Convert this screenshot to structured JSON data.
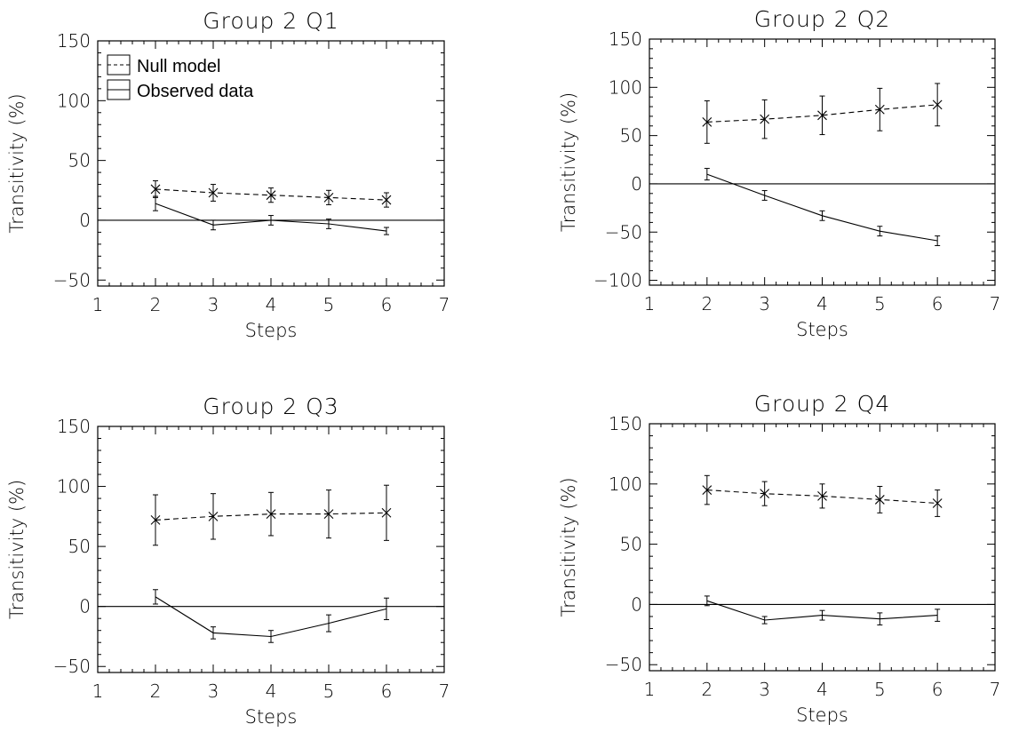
{
  "legend": {
    "entries": [
      {
        "label": "Null model",
        "style": "dashed"
      },
      {
        "label": "Observed data",
        "style": "solid"
      }
    ]
  },
  "chart_data": [
    {
      "type": "line",
      "title": "Group 2 Q1",
      "xlabel": "Steps",
      "ylabel": "Transitivity (%)",
      "xlim": [
        1,
        7
      ],
      "ylim": [
        -55,
        150
      ],
      "xticks": [
        1,
        2,
        3,
        4,
        5,
        6,
        7
      ],
      "yticks": [
        -50,
        0,
        50,
        100,
        150
      ],
      "reference_line_y": 0,
      "legend": true,
      "series": [
        {
          "name": "Null model",
          "style": "dashed",
          "marker": "x",
          "x": [
            2,
            3,
            4,
            5,
            6
          ],
          "y": [
            26,
            23,
            21,
            19,
            17
          ],
          "err": [
            7,
            7,
            6,
            6,
            6
          ]
        },
        {
          "name": "Observed data",
          "style": "solid",
          "marker": "none",
          "x": [
            2,
            3,
            4,
            5,
            6
          ],
          "y": [
            14,
            -4,
            0,
            -3,
            -9
          ],
          "err": [
            6,
            4,
            4,
            4,
            3
          ]
        }
      ]
    },
    {
      "type": "line",
      "title": "Group 2 Q2",
      "xlabel": "Steps",
      "ylabel": "Transitivity (%)",
      "xlim": [
        1,
        7
      ],
      "ylim": [
        -105,
        150
      ],
      "xticks": [
        1,
        2,
        3,
        4,
        5,
        6,
        7
      ],
      "yticks": [
        -100,
        -50,
        0,
        50,
        100,
        150
      ],
      "reference_line_y": 0,
      "legend": false,
      "series": [
        {
          "name": "Null model",
          "style": "dashed",
          "marker": "x",
          "x": [
            2,
            3,
            4,
            5,
            6
          ],
          "y": [
            64,
            67,
            71,
            77,
            82
          ],
          "err": [
            22,
            20,
            20,
            22,
            22
          ]
        },
        {
          "name": "Observed data",
          "style": "solid",
          "marker": "none",
          "x": [
            2,
            3,
            4,
            5,
            6
          ],
          "y": [
            10,
            -12,
            -33,
            -49,
            -59
          ],
          "err": [
            6,
            5,
            5,
            5,
            5
          ]
        }
      ]
    },
    {
      "type": "line",
      "title": "Group 2 Q3",
      "xlabel": "Steps",
      "ylabel": "Transitivity (%)",
      "xlim": [
        1,
        7
      ],
      "ylim": [
        -55,
        150
      ],
      "xticks": [
        1,
        2,
        3,
        4,
        5,
        6,
        7
      ],
      "yticks": [
        -50,
        0,
        50,
        100,
        150
      ],
      "reference_line_y": 0,
      "legend": false,
      "series": [
        {
          "name": "Null model",
          "style": "dashed",
          "marker": "x",
          "x": [
            2,
            3,
            4,
            5,
            6
          ],
          "y": [
            72,
            75,
            77,
            77,
            78
          ],
          "err": [
            21,
            19,
            18,
            20,
            23
          ]
        },
        {
          "name": "Observed data",
          "style": "solid",
          "marker": "none",
          "x": [
            2,
            3,
            4,
            5,
            6
          ],
          "y": [
            8,
            -22,
            -25,
            -14,
            -2
          ],
          "err": [
            6,
            5,
            5,
            7,
            9
          ]
        }
      ]
    },
    {
      "type": "line",
      "title": "Group 2 Q4",
      "xlabel": "Steps",
      "ylabel": "Transitivity (%)",
      "xlim": [
        1,
        7
      ],
      "ylim": [
        -55,
        150
      ],
      "xticks": [
        1,
        2,
        3,
        4,
        5,
        6,
        7
      ],
      "yticks": [
        -50,
        0,
        50,
        100,
        150
      ],
      "reference_line_y": 0,
      "legend": false,
      "series": [
        {
          "name": "Null model",
          "style": "dashed",
          "marker": "x",
          "x": [
            2,
            3,
            4,
            5,
            6
          ],
          "y": [
            95,
            92,
            90,
            87,
            84
          ],
          "err": [
            12,
            10,
            10,
            11,
            11
          ]
        },
        {
          "name": "Observed data",
          "style": "solid",
          "marker": "none",
          "x": [
            2,
            3,
            4,
            5,
            6
          ],
          "y": [
            3,
            -13,
            -9,
            -12,
            -9
          ],
          "err": [
            4,
            3,
            4,
            5,
            5
          ]
        }
      ]
    }
  ]
}
